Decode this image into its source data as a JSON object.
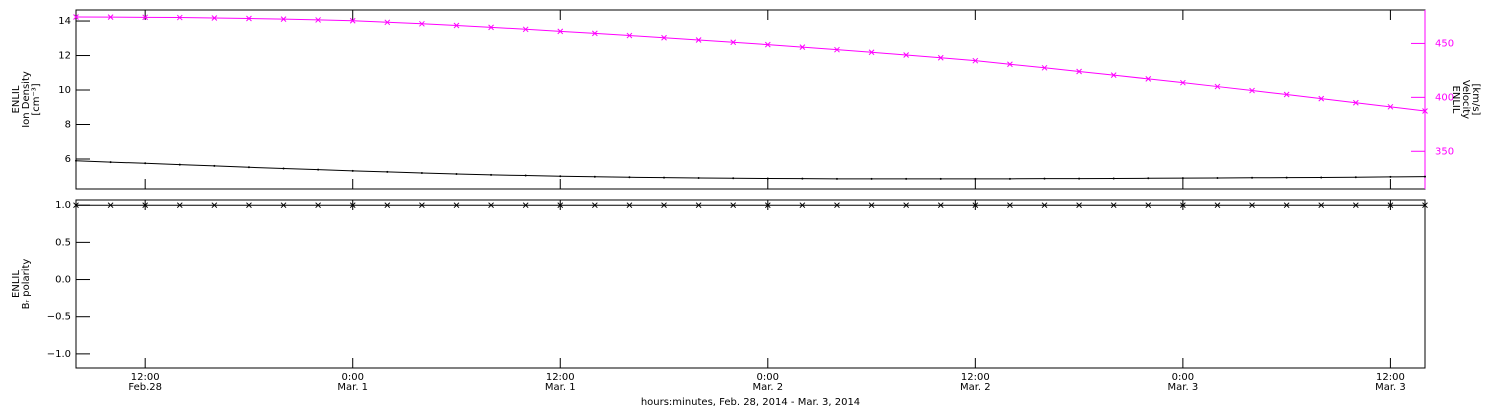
{
  "chart_data": [
    {
      "type": "line",
      "ylabel": [
        "ENLIL",
        "Ion Density",
        "[cm⁻³]"
      ],
      "y2label": [
        "ENLIL",
        "Velocity",
        "[km/s]"
      ],
      "x": [
        8,
        10,
        12,
        14,
        16,
        18,
        20,
        22,
        24,
        26,
        28,
        30,
        32,
        34,
        36,
        38,
        40,
        42,
        44,
        46,
        48,
        50,
        52,
        54,
        56,
        58,
        60,
        62,
        64,
        66,
        68,
        70,
        72,
        74,
        76,
        78,
        80,
        82,
        84,
        86
      ],
      "xlim": [
        8,
        86
      ],
      "xticks": [
        12,
        24,
        36,
        48,
        60,
        72,
        84
      ],
      "ylim": [
        4.26,
        14.64
      ],
      "yticks": [
        6,
        8,
        10,
        12,
        14
      ],
      "y2lim": [
        315,
        481
      ],
      "y2ticks": [
        350,
        400,
        450
      ],
      "series": [
        {
          "color": "#000000",
          "marker": "dot",
          "values": [
            5.9,
            5.82,
            5.75,
            5.67,
            5.6,
            5.52,
            5.45,
            5.38,
            5.31,
            5.25,
            5.19,
            5.13,
            5.08,
            5.04,
            5.0,
            4.97,
            4.94,
            4.92,
            4.9,
            4.88,
            4.87,
            4.86,
            4.85,
            4.85,
            4.85,
            4.85,
            4.85,
            4.85,
            4.86,
            4.86,
            4.87,
            4.88,
            4.89,
            4.9,
            4.91,
            4.92,
            4.93,
            4.94,
            4.96,
            4.98
          ]
        },
        {
          "color": "#ff00ff",
          "marker": "cross",
          "axis": "y2",
          "values": [
            474.5,
            474.4,
            474.2,
            474.0,
            473.6,
            473.1,
            472.5,
            471.8,
            471.0,
            469.6,
            468.2,
            466.6,
            464.9,
            463.1,
            461.2,
            459.3,
            457.3,
            455.3,
            453.2,
            451.1,
            448.9,
            446.6,
            444.2,
            441.8,
            439.3,
            436.7,
            434.0,
            430.7,
            427.4,
            424.0,
            420.6,
            417.1,
            413.6,
            410.0,
            406.3,
            402.6,
            398.8,
            395.0,
            391.2,
            387.3
          ]
        }
      ]
    },
    {
      "type": "line",
      "ylabel": [
        "ENLIL",
        "Bᵣ polarity"
      ],
      "xlabel": "hours:minutes, Feb. 28, 2014 - Mar.  3, 2014",
      "x": [
        8,
        10,
        12,
        14,
        16,
        18,
        20,
        22,
        24,
        26,
        28,
        30,
        32,
        34,
        36,
        38,
        40,
        42,
        44,
        46,
        48,
        50,
        52,
        54,
        56,
        58,
        60,
        62,
        64,
        66,
        68,
        70,
        72,
        74,
        76,
        78,
        80,
        82,
        84,
        86
      ],
      "xlim": [
        8,
        86
      ],
      "xticks": [
        {
          "value": 12,
          "label": "12:00",
          "date": "Feb.28"
        },
        {
          "value": 24,
          "label": "0:00",
          "date": "Mar. 1"
        },
        {
          "value": 36,
          "label": "12:00",
          "date": "Mar. 1"
        },
        {
          "value": 48,
          "label": "0:00",
          "date": "Mar. 2"
        },
        {
          "value": 60,
          "label": "12:00",
          "date": "Mar. 2"
        },
        {
          "value": 72,
          "label": "0:00",
          "date": "Mar. 3"
        },
        {
          "value": 84,
          "label": "12:00",
          "date": "Mar. 3"
        }
      ],
      "ylim": [
        -1.19,
        1.07
      ],
      "yticks": [
        {
          "value": -1,
          "label": "−1.0"
        },
        {
          "value": -0.5,
          "label": "−0.5"
        },
        {
          "value": 0,
          "label": "0.0"
        },
        {
          "value": 0.5,
          "label": "0.5"
        },
        {
          "value": 1,
          "label": "1.0"
        }
      ],
      "series": [
        {
          "color": "#000000",
          "marker": "cross",
          "values": [
            1,
            1,
            1,
            1,
            1,
            1,
            1,
            1,
            1,
            1,
            1,
            1,
            1,
            1,
            1,
            1,
            1,
            1,
            1,
            1,
            1,
            1,
            1,
            1,
            1,
            1,
            1,
            1,
            1,
            1,
            1,
            1,
            1,
            1,
            1,
            1,
            1,
            1,
            1,
            1
          ]
        }
      ]
    }
  ]
}
